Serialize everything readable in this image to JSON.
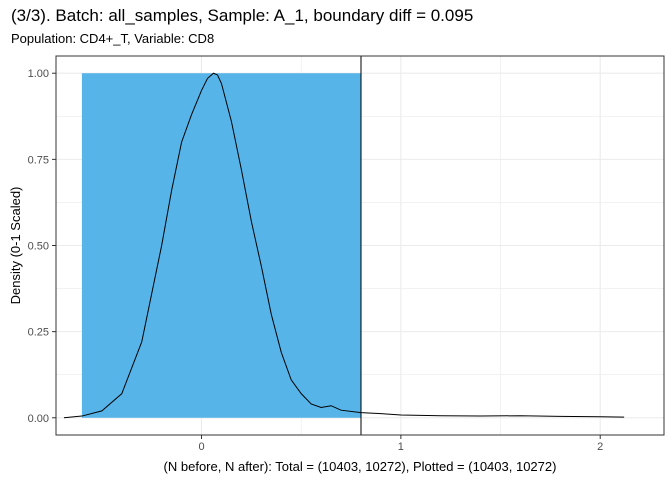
{
  "chart_data": {
    "type": "area",
    "title": "(3/3). Batch: all_samples, Sample: A_1, boundary diff = 0.095",
    "subtitle": "Population: CD4+_T, Variable: CD8",
    "xlabel": "(N before, N after): Total = (10403, 10272), Plotted = (10403, 10272)",
    "ylabel": "Density (0-1 Scaled)",
    "xlim": [
      -0.73,
      2.32
    ],
    "ylim": [
      -0.05,
      1.05
    ],
    "x_ticks": [
      0,
      1,
      2
    ],
    "x_tick_labels": [
      "0",
      "1",
      "2"
    ],
    "y_ticks": [
      0,
      0.25,
      0.5,
      0.75,
      1
    ],
    "y_tick_labels": [
      "0.00",
      "0.25",
      "0.50",
      "0.75",
      "1.00"
    ],
    "grid": true,
    "highlight_region": {
      "x": [
        -0.6,
        0.8
      ],
      "y": [
        0,
        1
      ],
      "color": "#56B4E9"
    },
    "boundary_line_x": 0.8,
    "series": [
      {
        "color": "#000000",
        "x": [
          -0.69,
          -0.6,
          -0.5,
          -0.4,
          -0.3,
          -0.2,
          -0.15,
          -0.1,
          -0.05,
          0,
          0.03,
          0.06,
          0.08,
          0.1,
          0.15,
          0.2,
          0.25,
          0.3,
          0.35,
          0.4,
          0.45,
          0.5,
          0.55,
          0.6,
          0.65,
          0.7,
          0.8,
          0.9,
          1.0,
          1.2,
          1.4,
          1.6,
          1.8,
          2.0,
          2.12
        ],
        "values": [
          0.0,
          0.005,
          0.02,
          0.07,
          0.22,
          0.5,
          0.66,
          0.8,
          0.88,
          0.95,
          0.985,
          1.0,
          0.995,
          0.97,
          0.86,
          0.72,
          0.57,
          0.44,
          0.3,
          0.19,
          0.11,
          0.07,
          0.04,
          0.03,
          0.035,
          0.022,
          0.015,
          0.012,
          0.008,
          0.006,
          0.005,
          0.006,
          0.004,
          0.003,
          0.002
        ]
      }
    ]
  },
  "colors": {
    "panel_border": "#333333",
    "grid": "#ebebeb",
    "fill": "#56B4E9"
  }
}
